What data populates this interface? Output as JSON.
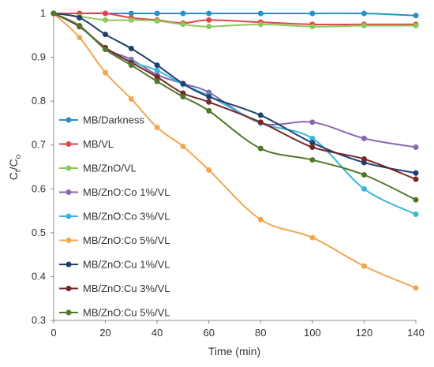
{
  "chart_data": {
    "type": "line",
    "xlabel": "Time (min)",
    "ylabel": "Ct/Co",
    "xlim": [
      0,
      140
    ],
    "ylim": [
      0.3,
      1
    ],
    "xticks": [
      0,
      20,
      40,
      60,
      80,
      100,
      120,
      140
    ],
    "yticks": [
      0.3,
      0.4,
      0.5,
      0.6,
      0.7,
      0.8,
      0.9,
      1
    ],
    "ytick_labels": [
      "0.3",
      "0.4",
      "0.5",
      "0.6",
      "0.7",
      "0.8",
      "0.9",
      "1"
    ],
    "grid": false,
    "legend_position": "left-center",
    "series": [
      {
        "name": "MB/Darkness",
        "color": "#2a8fc4",
        "x": [
          0,
          10,
          20,
          30,
          40,
          50,
          60,
          80,
          100,
          120,
          140
        ],
        "values": [
          1,
          1,
          1,
          1,
          1,
          1,
          1,
          1,
          1,
          1,
          0.995
        ]
      },
      {
        "name": "MB/VL",
        "color": "#e0454f",
        "x": [
          0,
          10,
          20,
          30,
          40,
          50,
          60,
          80,
          100,
          120,
          140
        ],
        "values": [
          1,
          1,
          1,
          0.99,
          0.985,
          0.978,
          0.985,
          0.98,
          0.975,
          0.975,
          0.975
        ]
      },
      {
        "name": "MB/ZnO/VL",
        "color": "#8cc95a",
        "x": [
          0,
          10,
          20,
          30,
          40,
          50,
          60,
          80,
          100,
          120,
          140
        ],
        "values": [
          1,
          0.993,
          0.985,
          0.985,
          0.983,
          0.975,
          0.97,
          0.975,
          0.97,
          0.972,
          0.972
        ]
      },
      {
        "name": "MB/ZnO:Co 1%/VL",
        "color": "#8a68b0",
        "x": [
          0,
          10,
          20,
          30,
          40,
          50,
          60,
          80,
          100,
          120,
          140
        ],
        "values": [
          1,
          0.97,
          0.92,
          0.895,
          0.86,
          0.84,
          0.82,
          0.75,
          0.752,
          0.715,
          0.695
        ]
      },
      {
        "name": "MB/ZnO:Co 3%/VL",
        "color": "#3ab7d8",
        "x": [
          0,
          10,
          20,
          30,
          40,
          50,
          60,
          80,
          100,
          120,
          140
        ],
        "values": [
          1,
          0.97,
          0.92,
          0.89,
          0.87,
          0.838,
          0.812,
          0.75,
          0.715,
          0.6,
          0.542
        ]
      },
      {
        "name": "MB/ZnO:Co 5%/VL",
        "color": "#f0a850",
        "x": [
          0,
          10,
          20,
          30,
          40,
          50,
          60,
          80,
          100,
          120,
          140
        ],
        "values": [
          1,
          0.945,
          0.865,
          0.805,
          0.74,
          0.697,
          0.643,
          0.53,
          0.489,
          0.424,
          0.374
        ]
      },
      {
        "name": "MB/ZnO:Cu 1%/VL",
        "color": "#1f3f6e",
        "x": [
          0,
          10,
          20,
          30,
          40,
          50,
          60,
          80,
          100,
          120,
          140
        ],
        "values": [
          1,
          0.99,
          0.952,
          0.92,
          0.882,
          0.84,
          0.81,
          0.768,
          0.705,
          0.66,
          0.636
        ]
      },
      {
        "name": "MB/ZnO:Cu 3%/VL",
        "color": "#7a2525",
        "x": [
          0,
          10,
          20,
          30,
          40,
          50,
          60,
          80,
          100,
          120,
          140
        ],
        "values": [
          1,
          0.97,
          0.922,
          0.888,
          0.855,
          0.818,
          0.798,
          0.752,
          0.695,
          0.668,
          0.622
        ]
      },
      {
        "name": "MB/ZnO:Cu 5%/VL",
        "color": "#4f7a2a",
        "x": [
          0,
          10,
          20,
          30,
          40,
          50,
          60,
          80,
          100,
          120,
          140
        ],
        "values": [
          1,
          0.972,
          0.918,
          0.882,
          0.845,
          0.81,
          0.778,
          0.692,
          0.666,
          0.632,
          0.575
        ]
      }
    ]
  }
}
